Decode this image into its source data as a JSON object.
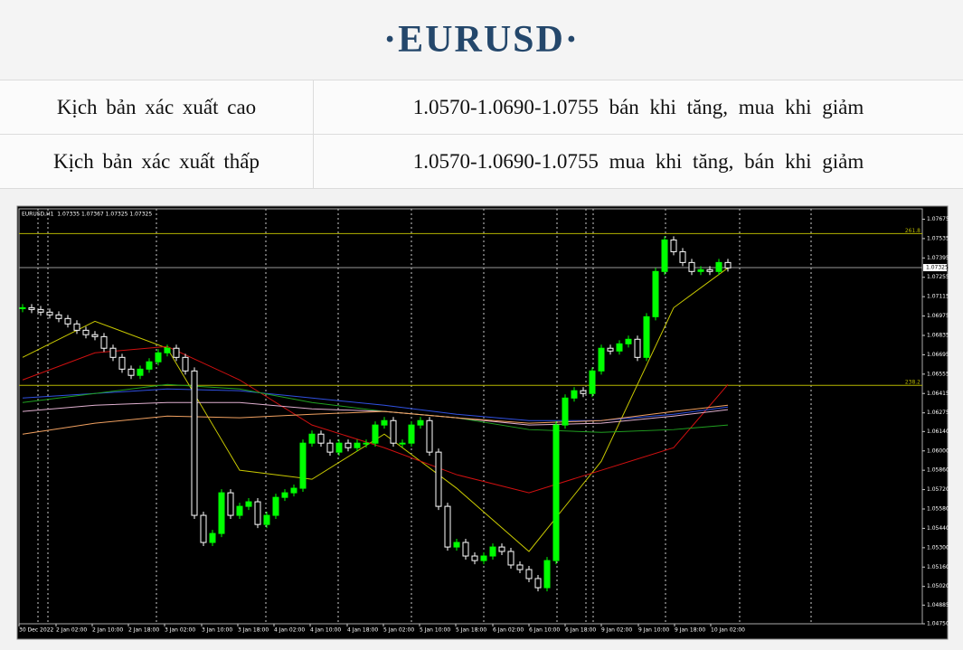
{
  "header": {
    "title": "·EURUSD·"
  },
  "table": {
    "rows": [
      [
        "Kịch bản xác xuất cao",
        "1.0570-1.0690-1.0755 bán khi tăng, mua khi giảm"
      ],
      [
        "Kịch bản xác xuất thấp",
        "1.0570-1.0690-1.0755 mua khi tăng, bán khi giảm"
      ]
    ]
  },
  "chart_data": {
    "type": "candlestick",
    "title": "EURUSD,H1  1.07335 1.07367 1.07325 1.07325",
    "values": [
      1.07035,
      1.07022,
      1.07003,
      1.06983,
      1.06957,
      1.06918,
      1.06872,
      1.0684,
      1.06826,
      1.06742,
      1.06676,
      1.06591,
      1.06546,
      1.06591,
      1.06644,
      1.06709,
      1.06742,
      1.06676,
      1.06578,
      1.05534,
      1.05338,
      1.05403,
      1.05697,
      1.05534,
      1.05599,
      1.05632,
      1.05468,
      1.05534,
      1.05664,
      1.05697,
      1.0573,
      1.06056,
      1.06121,
      1.06056,
      1.05991,
      1.06056,
      1.06023,
      1.06056,
      1.06056,
      1.06187,
      1.06219,
      1.06056,
      1.06056,
      1.06187,
      1.06219,
      1.05991,
      1.05599,
      1.05305,
      1.05338,
      1.0524,
      1.05207,
      1.0524,
      1.05305,
      1.05273,
      1.05175,
      1.05142,
      1.05077,
      1.05011,
      1.05207,
      1.06187,
      1.06382,
      1.06435,
      1.06415,
      1.06578,
      1.06742,
      1.06722,
      1.06774,
      1.06807,
      1.06676,
      1.0697,
      1.07297,
      1.07525,
      1.0744,
      1.07362,
      1.07297,
      1.0731,
      1.07297,
      1.07362,
      1.07323
    ],
    "color_up": "#00ff00",
    "color_down": "#ffffff",
    "ma_x": [
      0,
      8,
      16,
      24,
      32,
      40,
      48,
      56,
      64,
      72,
      78
    ],
    "moving_averages": [
      {
        "color": "#c8c800",
        "values": [
          1.06676,
          1.06937,
          1.06742,
          1.0586,
          1.05795,
          1.06121,
          1.0573,
          1.05273,
          1.05925,
          1.07035,
          1.07323
        ]
      },
      {
        "color": "#d01010",
        "values": [
          1.06513,
          1.06709,
          1.06755,
          1.06513,
          1.06187,
          1.06023,
          1.05828,
          1.05697,
          1.0586,
          1.06023,
          1.0648
        ]
      },
      {
        "color": "#3050e0",
        "values": [
          1.06382,
          1.06415,
          1.06448,
          1.06435,
          1.06382,
          1.0633,
          1.06265,
          1.06219,
          1.06219,
          1.06265,
          1.06317
        ]
      },
      {
        "color": "#20a020",
        "values": [
          1.0635,
          1.06415,
          1.0648,
          1.06448,
          1.0635,
          1.06285,
          1.06239,
          1.06154,
          1.06134,
          1.06154,
          1.06187
        ]
      },
      {
        "color": "#e0b0d0",
        "values": [
          1.06285,
          1.0633,
          1.0635,
          1.0635,
          1.06304,
          1.06285,
          1.06239,
          1.06187,
          1.062,
          1.06252,
          1.06298
        ]
      },
      {
        "color": "#f0a060",
        "values": [
          1.06121,
          1.062,
          1.06252,
          1.06239,
          1.06265,
          1.06285,
          1.06239,
          1.062,
          1.06219,
          1.06285,
          1.0633
        ]
      }
    ],
    "levels": [
      {
        "label": "261.8",
        "value": 1.07571,
        "color": "#b5b500"
      },
      {
        "label": "238.2",
        "value": 1.06474,
        "color": "#b5b500"
      }
    ],
    "current_price": 1.07325,
    "ylim": [
      1.0475,
      1.0775
    ],
    "yticks": [
      1.07675,
      1.07535,
      1.07395,
      1.07255,
      1.07115,
      1.06975,
      1.06835,
      1.06695,
      1.06555,
      1.06415,
      1.06275,
      {
        "value": 1.0614,
        "label": "1.06140"
      },
      {
        "value": 1.06,
        "label": "1.06000"
      },
      {
        "value": 1.0586,
        "label": "1.05860"
      },
      {
        "value": 1.0572,
        "label": "1.05720"
      },
      {
        "value": 1.0558,
        "label": "1.05580"
      },
      {
        "value": 1.0544,
        "label": "1.05440"
      },
      {
        "value": 1.053,
        "label": "1.05300"
      },
      {
        "value": 1.0516,
        "label": "1.05160"
      },
      {
        "value": 1.0502,
        "label": "1.05020"
      },
      1.04885,
      {
        "value": 1.0475,
        "label": "1.04750"
      }
    ],
    "xticks": [
      {
        "value": -0.4,
        "label": "30 Dec 2022"
      },
      {
        "value": 3.7,
        "label": "2 Jan 02:00"
      },
      {
        "value": 7.7,
        "label": "2 Jan 10:00"
      },
      {
        "value": 11.7,
        "label": "2 Jan 18:00"
      },
      {
        "value": 15.7,
        "label": "3 Jan 02:00"
      },
      {
        "value": 19.8,
        "label": "3 Jan 10:00"
      },
      {
        "value": 23.8,
        "label": "3 Jan 18:00"
      },
      {
        "value": 27.8,
        "label": "4 Jan 02:00"
      },
      {
        "value": 31.8,
        "label": "4 Jan 10:00"
      },
      {
        "value": 35.9,
        "label": "4 Jan 18:00"
      },
      {
        "value": 39.9,
        "label": "5 Jan 02:00"
      },
      {
        "value": 43.9,
        "label": "5 Jan 10:00"
      },
      {
        "value": 47.9,
        "label": "5 Jan 18:00"
      },
      {
        "value": 52,
        "label": "6 Jan 02:00"
      },
      {
        "value": 56,
        "label": "6 Jan 10:00"
      },
      {
        "value": 60,
        "label": "6 Jan 18:00"
      },
      {
        "value": 64,
        "label": "9 Jan 02:00"
      },
      {
        "value": 68.1,
        "label": "9 Jan 10:00"
      },
      {
        "value": 72.1,
        "label": "9 Jan 18:00"
      },
      {
        "value": 76.1,
        "label": "10 Jan 02:00"
      }
    ]
  }
}
